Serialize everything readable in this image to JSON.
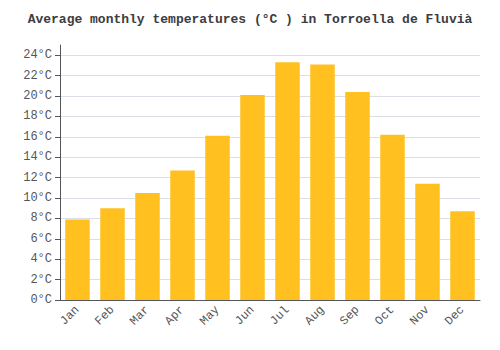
{
  "chart_data": {
    "type": "bar",
    "title": "Average monthly temperatures (°C ) in Torroella de Fluvià",
    "categories": [
      "Jan",
      "Feb",
      "Mar",
      "Apr",
      "May",
      "Jun",
      "Jul",
      "Aug",
      "Sep",
      "Oct",
      "Nov",
      "Dec"
    ],
    "values": [
      7.9,
      9.0,
      10.5,
      12.7,
      16.1,
      20.1,
      23.3,
      23.1,
      20.4,
      16.2,
      11.4,
      8.7
    ],
    "color": "#FFC020",
    "ylim": [
      0,
      25
    ],
    "yticks": [
      {
        "value": 0,
        "label": "0°C"
      },
      {
        "value": 2,
        "label": "2°C"
      },
      {
        "value": 4,
        "label": "4°C"
      },
      {
        "value": 6,
        "label": "6°C"
      },
      {
        "value": 8,
        "label": "8°C"
      },
      {
        "value": 10,
        "label": "10°C"
      },
      {
        "value": 12,
        "label": "12°C"
      },
      {
        "value": 14,
        "label": "14°C"
      },
      {
        "value": 16,
        "label": "16°C"
      },
      {
        "value": 18,
        "label": "18°C"
      },
      {
        "value": 20,
        "label": "20°C"
      },
      {
        "value": 22,
        "label": "22°C"
      },
      {
        "value": 24,
        "label": "24°C"
      }
    ],
    "grid": true
  }
}
